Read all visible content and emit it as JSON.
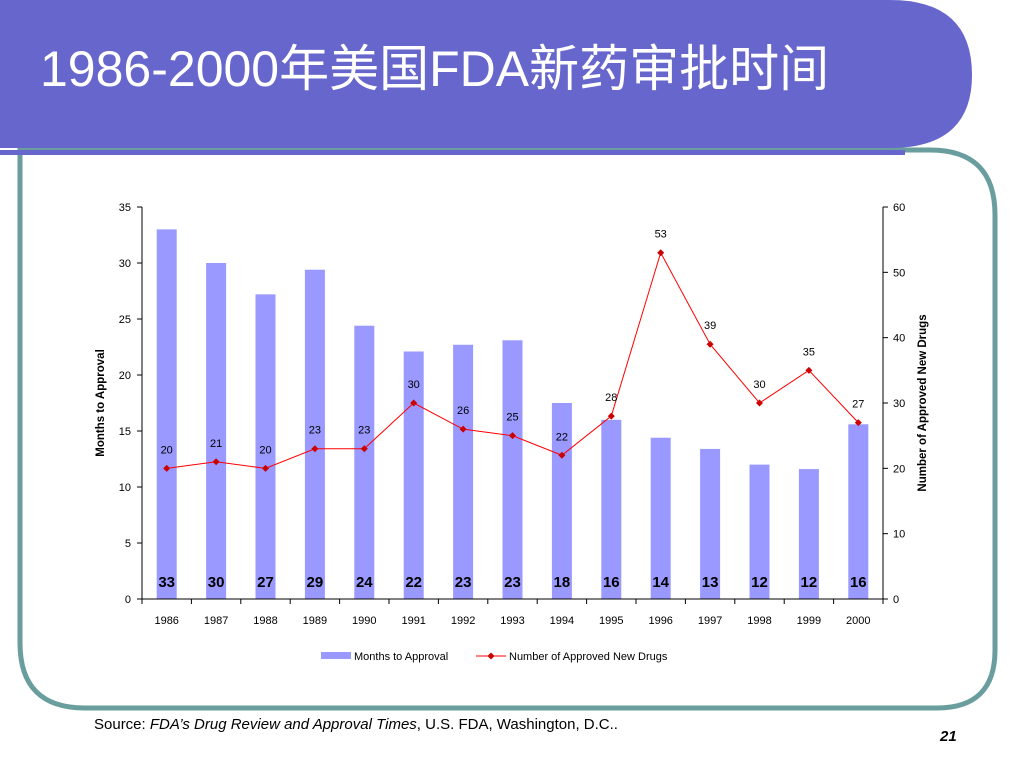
{
  "slide": {
    "title": "1986-2000年美国FDA新药审批时间",
    "page_number": "21",
    "colors": {
      "header": "#6666CC",
      "frame": "#6A9E9E",
      "bar": "#9999FF",
      "line": "#FF0000",
      "line_marker": "#CC0000"
    }
  },
  "source": {
    "prefix": "Source: ",
    "italic": "FDA’s Drug Review and Approval Times",
    "suffix": ", U.S. FDA, Washington, D.C.."
  },
  "chart_data": {
    "type": "bar",
    "categories": [
      "1986",
      "1987",
      "1988",
      "1989",
      "1990",
      "1991",
      "1992",
      "1993",
      "1994",
      "1995",
      "1996",
      "1997",
      "1998",
      "1999",
      "2000"
    ],
    "series": [
      {
        "name": "Months to Approval",
        "type": "bar",
        "axis": "left",
        "values": [
          33,
          30,
          27.2,
          29.4,
          24.4,
          22.1,
          22.7,
          23.1,
          17.5,
          16,
          14.4,
          13.4,
          12,
          11.6,
          15.6
        ],
        "labels": [
          "33",
          "30",
          "27",
          "29",
          "24",
          "22",
          "23",
          "23",
          "18",
          "16",
          "14",
          "13",
          "12",
          "12",
          "16"
        ]
      },
      {
        "name": "Number of Approved New Drugs",
        "type": "line",
        "axis": "right",
        "values": [
          20,
          21,
          20,
          23,
          23,
          30,
          26,
          25,
          22,
          28,
          53,
          39,
          30,
          35,
          27
        ]
      }
    ],
    "ylabel": "Months to Approval",
    "y2label": "Number of Approved New Drugs",
    "ylim": [
      0,
      35
    ],
    "y2lim": [
      0,
      60
    ],
    "yticks": [
      0,
      5,
      10,
      15,
      20,
      25,
      30,
      35
    ],
    "y2ticks": [
      0,
      10,
      20,
      30,
      40,
      50,
      60
    ],
    "legend": "bottom",
    "grid": false
  }
}
